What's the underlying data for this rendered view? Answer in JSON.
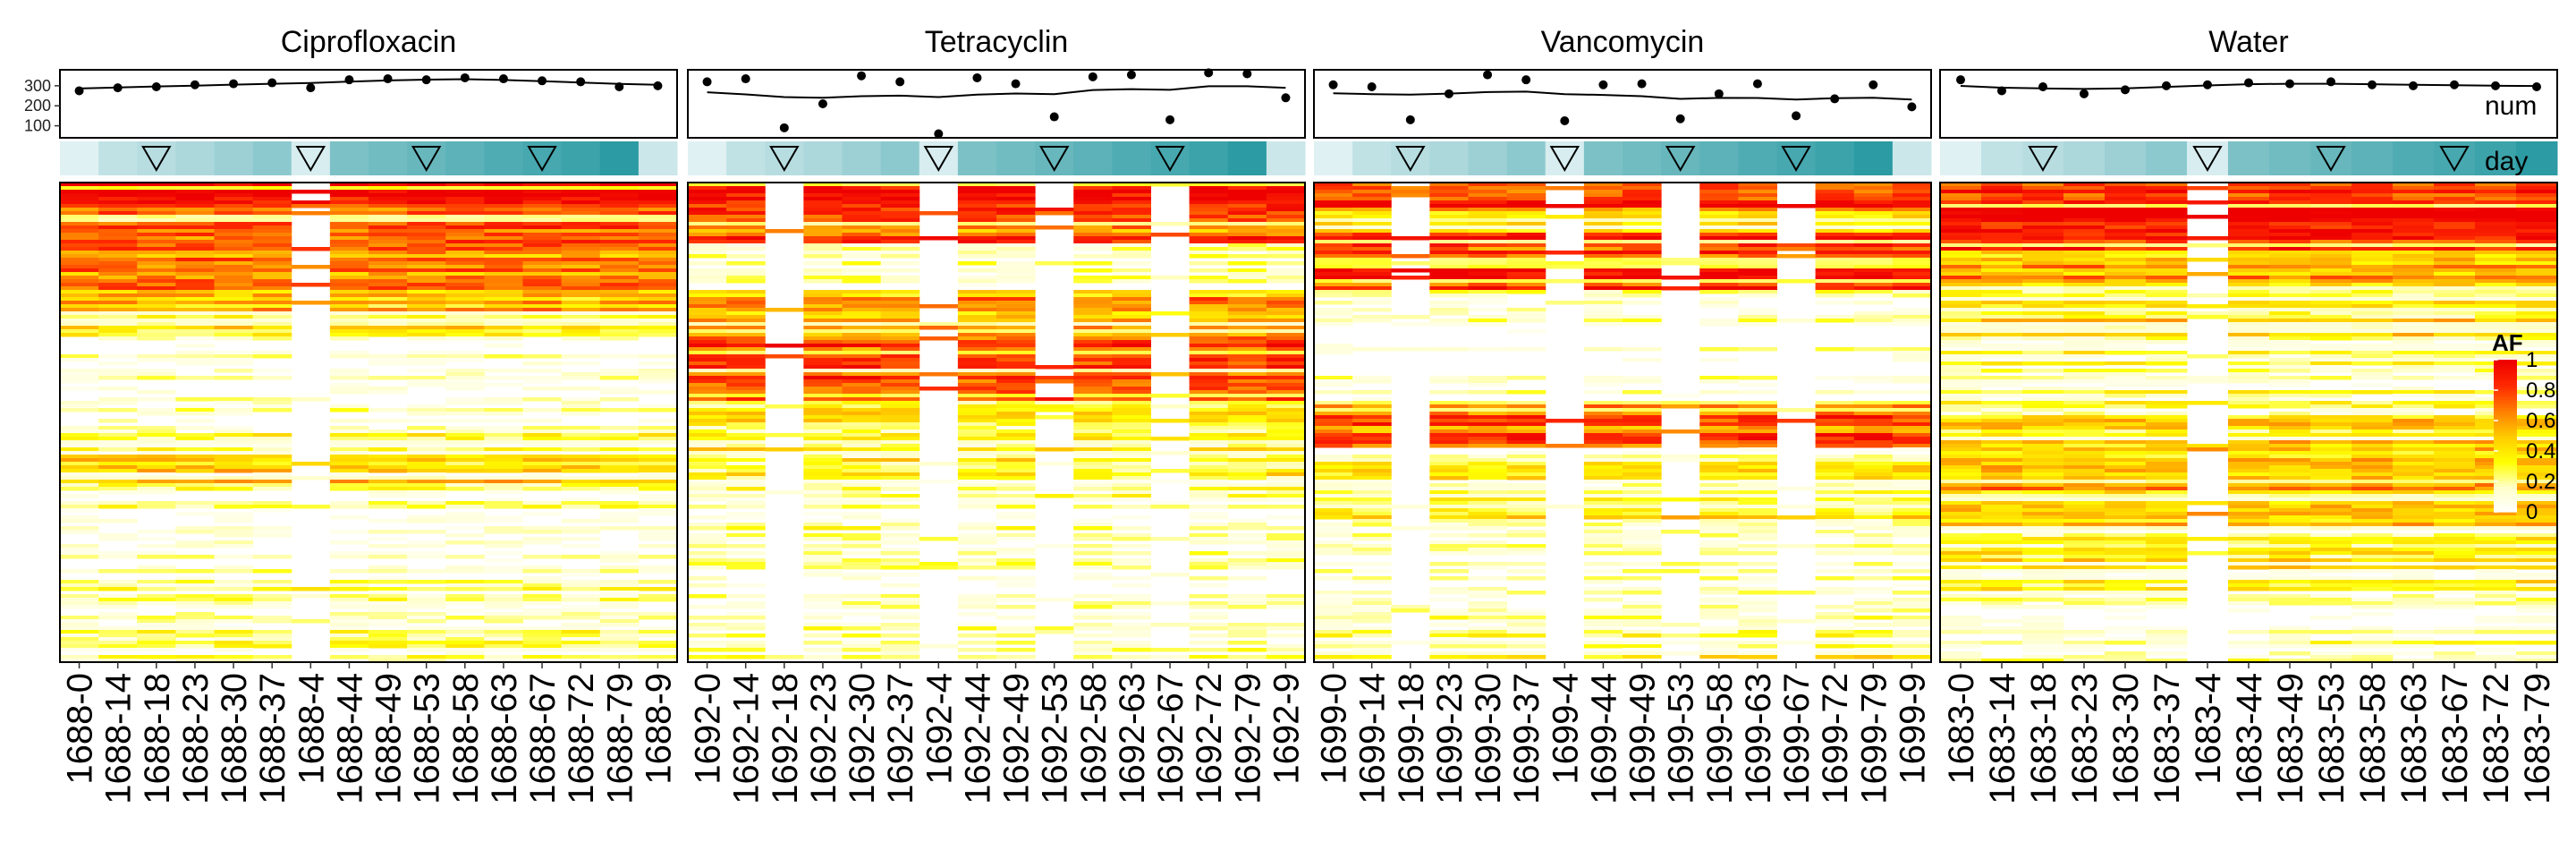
{
  "chart_data": {
    "type": "heatmap",
    "panels": [
      {
        "title": "Ciprofloxacin",
        "samples": [
          "1688-0",
          "1688-14",
          "1688-18",
          "1688-23",
          "1688-30",
          "1688-37",
          "1688-4",
          "1688-44",
          "1688-49",
          "1688-53",
          "1688-58",
          "1688-63",
          "1688-67",
          "1688-72",
          "1688-79",
          "1688-9"
        ],
        "num": [
          275,
          290,
          295,
          305,
          310,
          315,
          290,
          330,
          335,
          330,
          340,
          335,
          325,
          320,
          295,
          300
        ],
        "day": [
          0,
          14,
          18,
          23,
          30,
          37,
          4,
          44,
          49,
          53,
          58,
          63,
          67,
          72,
          79,
          9
        ]
      },
      {
        "title": "Tetracyclin",
        "samples": [
          "1692-0",
          "1692-14",
          "1692-18",
          "1692-23",
          "1692-30",
          "1692-37",
          "1692-4",
          "1692-44",
          "1692-49",
          "1692-53",
          "1692-58",
          "1692-63",
          "1692-67",
          "1692-72",
          "1692-79",
          "1692-9"
        ],
        "num": [
          320,
          335,
          90,
          210,
          350,
          320,
          60,
          340,
          310,
          145,
          345,
          355,
          130,
          365,
          360,
          240
        ],
        "day": [
          0,
          14,
          18,
          23,
          30,
          37,
          4,
          44,
          49,
          53,
          58,
          63,
          67,
          72,
          79,
          9
        ]
      },
      {
        "title": "Vancomycin",
        "samples": [
          "1699-0",
          "1699-14",
          "1699-18",
          "1699-23",
          "1699-30",
          "1699-37",
          "1699-4",
          "1699-44",
          "1699-49",
          "1699-53",
          "1699-58",
          "1699-63",
          "1699-67",
          "1699-72",
          "1699-79",
          "1699-9"
        ],
        "num": [
          305,
          295,
          130,
          260,
          355,
          330,
          125,
          305,
          310,
          135,
          260,
          310,
          150,
          235,
          305,
          195
        ],
        "day": [
          0,
          14,
          18,
          23,
          30,
          37,
          4,
          44,
          49,
          53,
          58,
          63,
          67,
          72,
          79,
          9
        ]
      },
      {
        "title": "Water",
        "samples": [
          "1683-0",
          "1683-14",
          "1683-18",
          "1683-23",
          "1683-30",
          "1683-37",
          "1683-4",
          "1683-44",
          "1683-49",
          "1683-53",
          "1683-58",
          "1683-63",
          "1683-67",
          "1683-72",
          "1683-79"
        ],
        "num": [
          330,
          275,
          295,
          260,
          280,
          300,
          305,
          315,
          310,
          320,
          305,
          300,
          305,
          300,
          295
        ],
        "day": [
          0,
          14,
          18,
          23,
          30,
          37,
          4,
          44,
          49,
          53,
          58,
          63,
          67,
          72,
          79
        ]
      }
    ],
    "num_axis": {
      "label": "num",
      "ticks": [
        100,
        200,
        300
      ],
      "ylim": [
        40,
        380
      ]
    },
    "day_label": "day",
    "day_colors": [
      "#e0f1f3",
      "#2c9ba3"
    ],
    "af_legend": {
      "title": "AF",
      "ticks": [
        "1",
        "0.8",
        "0.6",
        "0.4",
        "0.2",
        "0"
      ],
      "colors": [
        "#ffffff",
        "#ffffcc",
        "#ffff00",
        "#ffcc00",
        "#ff7f00",
        "#ff2a00",
        "#ee0000"
      ],
      "placement": "right"
    },
    "marker_days": [
      18,
      4,
      53,
      67
    ]
  }
}
